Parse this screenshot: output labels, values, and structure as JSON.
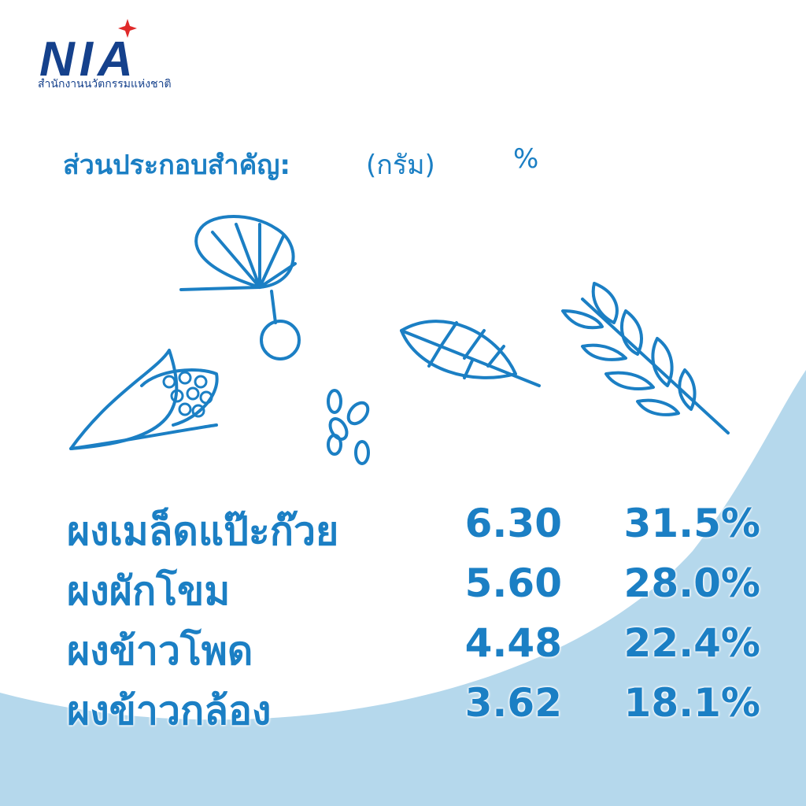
{
  "header": {
    "logo": "NIA",
    "organization": "สำนักงานนวัตกรรมแห่งชาติ"
  },
  "table": {
    "title": "ส่วนประกอบสำคัญ:",
    "columns": [
      "(กรัม)",
      "%"
    ],
    "rows": [
      [
        "ผงเมล็ดแป๊ะก๊วย",
        "6.30",
        "31.5%"
      ],
      [
        "ผงผักโขม",
        "5.60",
        "28.0%"
      ],
      [
        "ผงข้าวโพด",
        "4.48",
        "22.4%"
      ],
      [
        "ผงข้าวกล้อง",
        "3.62",
        "18.1%"
      ]
    ]
  }
}
